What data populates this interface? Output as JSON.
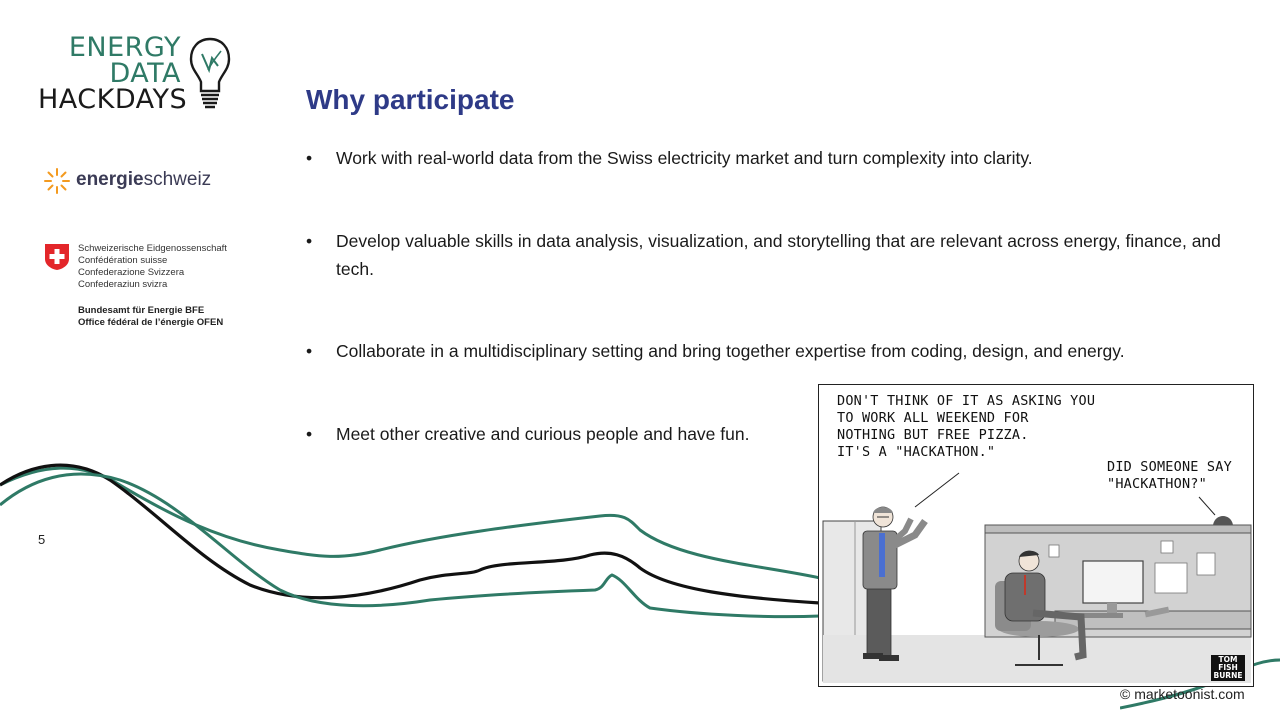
{
  "logo": {
    "line1": "ENERGY",
    "line2": "DATA",
    "line3": "HACKDAYS"
  },
  "sponsor1": {
    "bold": "energie",
    "regular": "schweiz"
  },
  "sponsor2": {
    "lines": [
      "Schweizerische Eidgenossenschaft",
      "Confédération suisse",
      "Confederazione Svizzera",
      "Confederaziun svizra"
    ],
    "office_lines": [
      "Bundesamt für Energie BFE",
      "Office fédéral de l’énergie OFEN"
    ]
  },
  "page_number": "5",
  "title": "Why participate",
  "bullets": [
    {
      "symbol": "•",
      "text": "Work with real-world data from the Swiss electricity market and turn complexity into clarity."
    },
    {
      "symbol": "•",
      "text": "Develop valuable skills in data analysis, visualization, and storytelling that are relevant across energy, finance, and tech."
    },
    {
      "symbol": "•",
      "text": "Collaborate in a multidisciplinary setting and bring together expertise from coding, design, and energy."
    },
    {
      "symbol": "•",
      "text": "Meet other creative and curious people and have fun."
    }
  ],
  "cartoon": {
    "caption1": "DON'T THINK OF IT AS ASKING YOU\nTO WORK ALL WEEKEND FOR\nNOTHING BUT FREE PIZZA.\nIT'S A \"HACKATHON.\"",
    "caption2": "DID SOMEONE SAY\n\"HACKATHON?\"",
    "signature": "TOM FISH BURNE"
  },
  "credit": "© marketoonist.com",
  "colors": {
    "title": "#2e3a87",
    "logo_green": "#2f7a66",
    "wave_green": "#2f7a66",
    "wave_black": "#111111",
    "flag_red": "#e3262a"
  }
}
